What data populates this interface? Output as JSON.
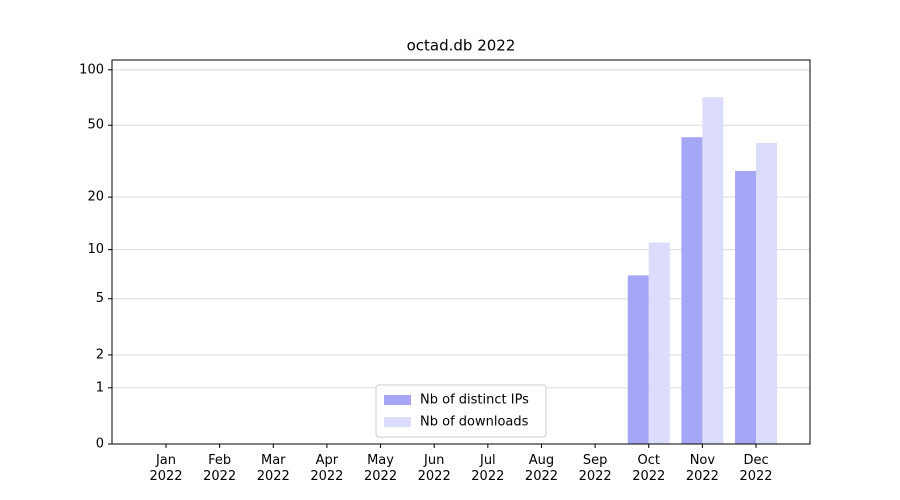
{
  "chart_data": {
    "type": "bar",
    "title": "octad.db 2022",
    "categories": [
      "Jan\n2022",
      "Feb\n2022",
      "Mar\n2022",
      "Apr\n2022",
      "May\n2022",
      "Jun\n2022",
      "Jul\n2022",
      "Aug\n2022",
      "Sep\n2022",
      "Oct\n2022",
      "Nov\n2022",
      "Dec\n2022"
    ],
    "series": [
      {
        "name": "Nb of distinct IPs",
        "color": "#a6a6f7",
        "values": [
          0,
          0,
          0,
          0,
          0,
          0,
          0,
          0,
          0,
          7,
          43,
          28
        ]
      },
      {
        "name": "Nb of downloads",
        "color": "#dcdcfc",
        "values": [
          0,
          0,
          0,
          0,
          0,
          0,
          0,
          0,
          0,
          11,
          71,
          40
        ]
      }
    ],
    "yscale": "log1p",
    "ylim": [
      0,
      113
    ],
    "yticks": [
      0,
      1,
      2,
      5,
      10,
      20,
      50,
      100
    ],
    "grid": true,
    "legend": "lower center"
  }
}
